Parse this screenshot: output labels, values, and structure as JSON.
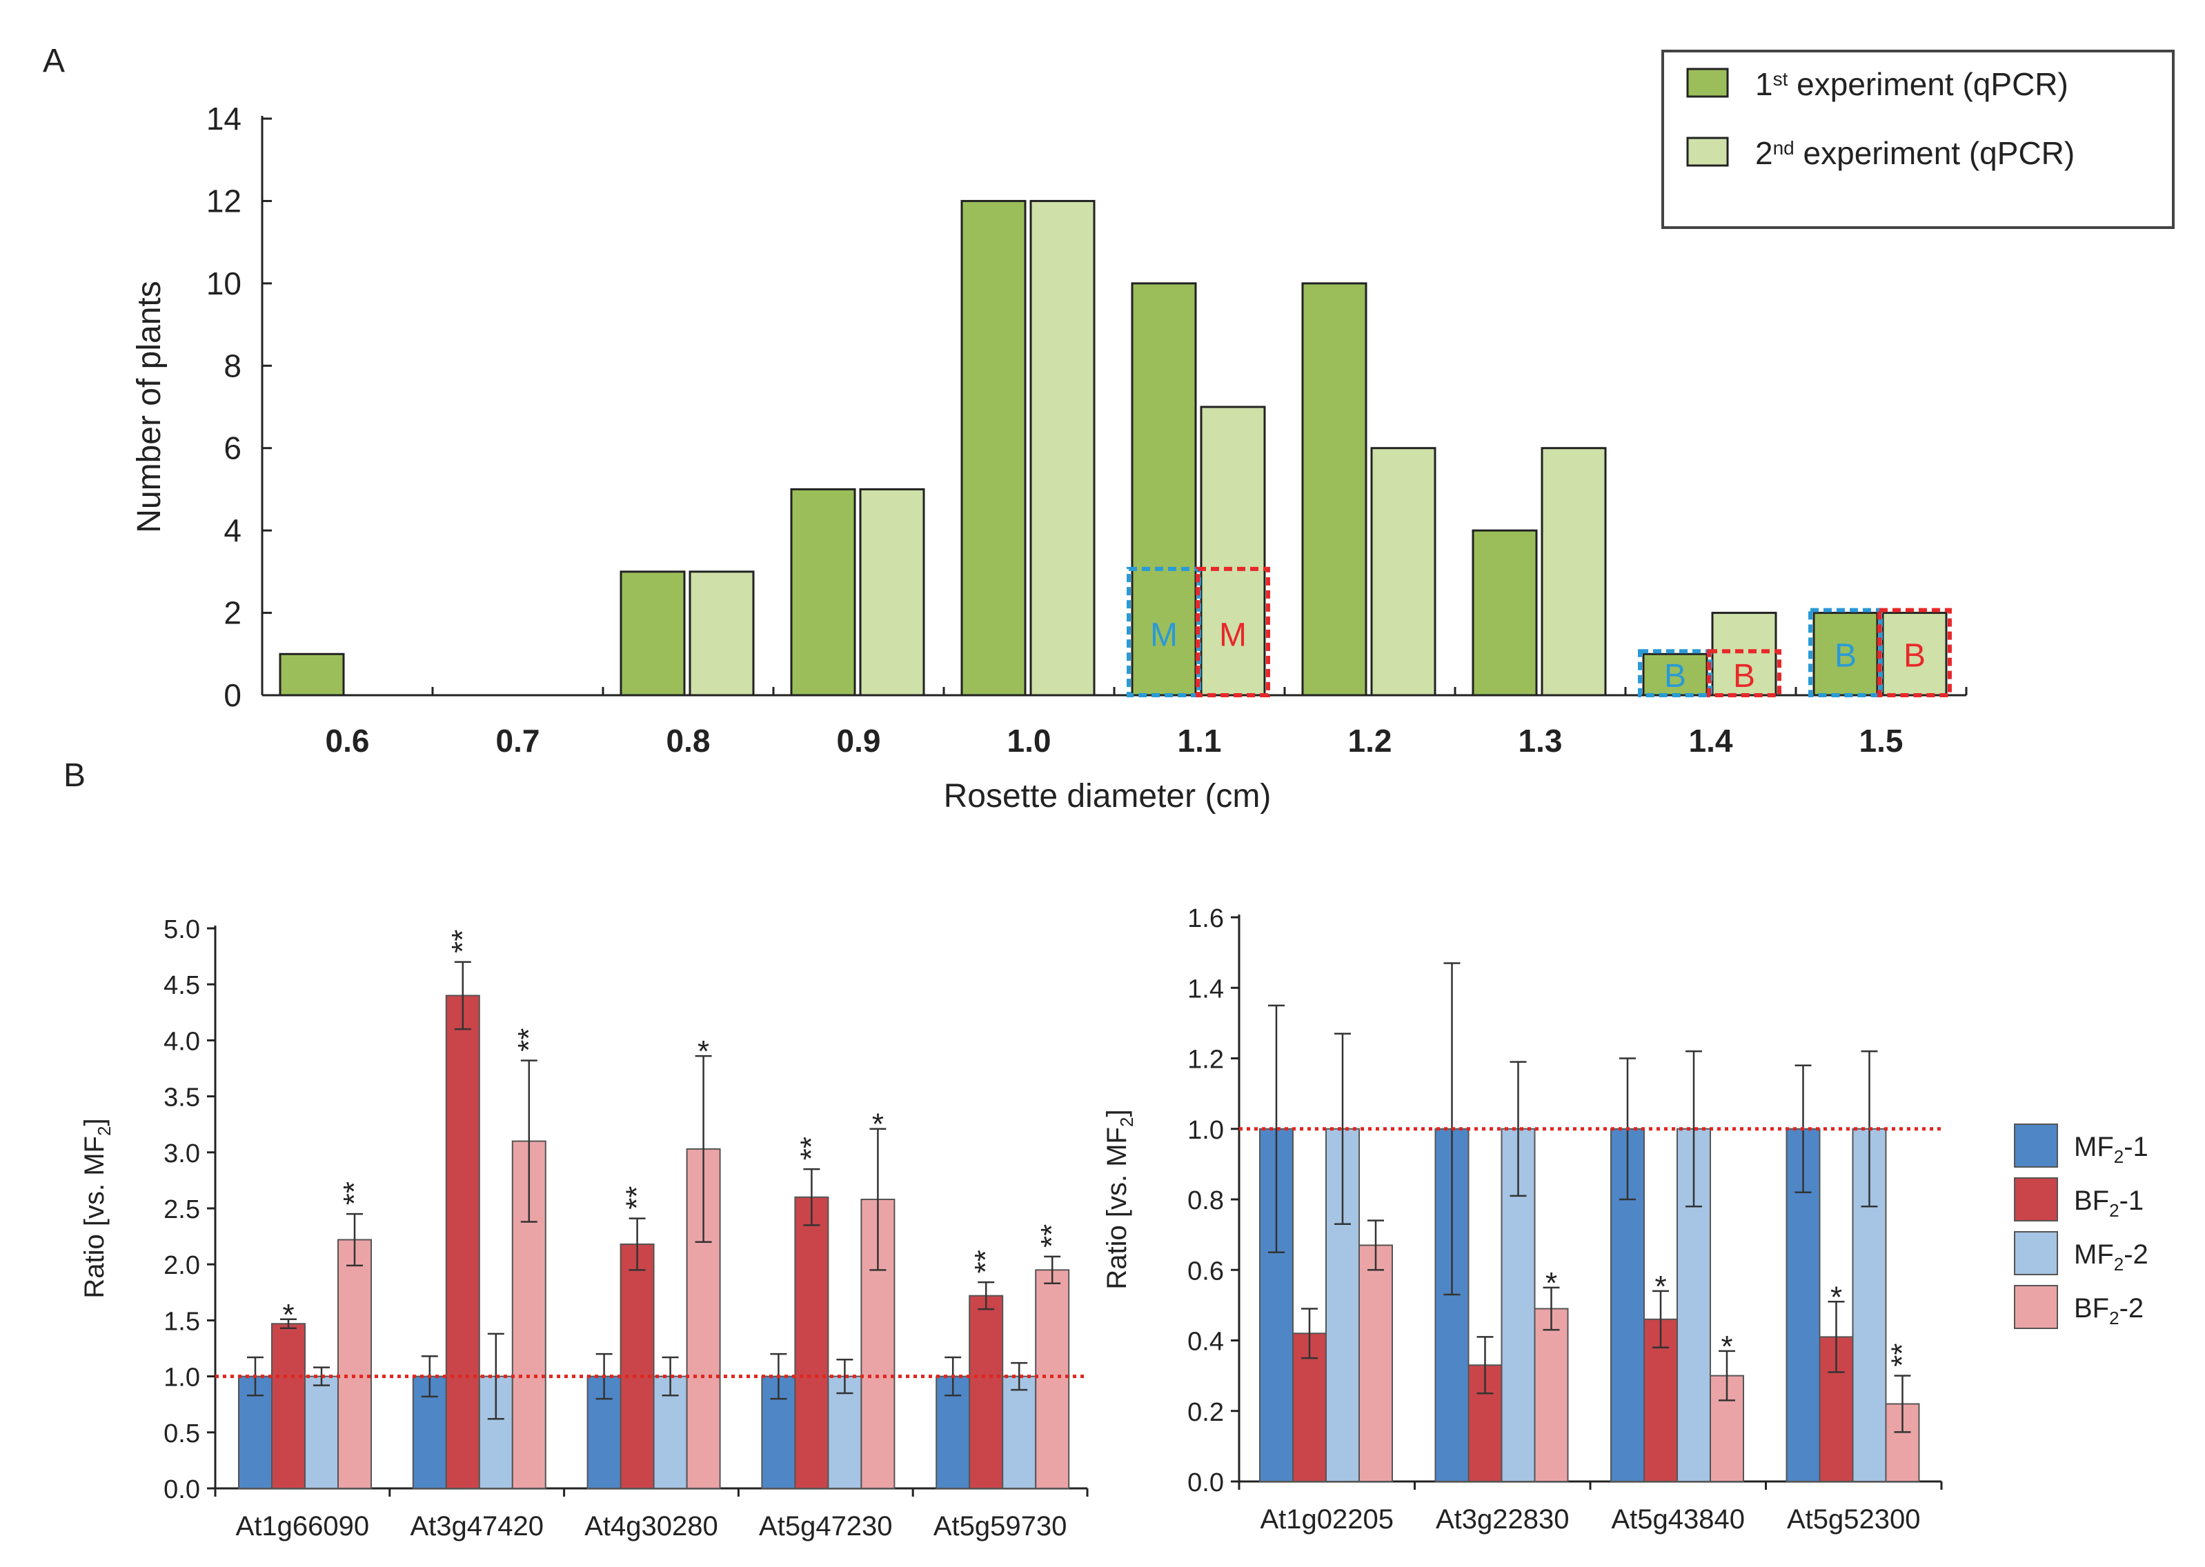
{
  "colors": {
    "green_dark": "#9BBE5A",
    "green_light": "#CFE0A9",
    "mf1": "#4F86C6",
    "bf1": "#C9454A",
    "mf2": "#A6C4E4",
    "bf2": "#EBA4A6",
    "red_line": "#E0261E",
    "blue_box": "#2A9AD6",
    "red_box": "#E8282A",
    "text": "#222222"
  },
  "panel_labels": {
    "a": "A",
    "b": "B"
  },
  "chart_data": [
    {
      "id": "A",
      "type": "bar",
      "title": "",
      "xlabel": "Rosette diameter (cm)",
      "ylabel": "Number of plants",
      "ylim": [
        0,
        14
      ],
      "yticks": [
        0,
        2,
        4,
        6,
        8,
        10,
        12,
        14
      ],
      "categories": [
        "0.6",
        "0.7",
        "0.8",
        "0.9",
        "1.0",
        "1.1",
        "1.2",
        "1.3",
        "1.4",
        "1.5"
      ],
      "series": [
        {
          "name": "1st experiment (qPCR)",
          "legend_pre": "1",
          "legend_sup": "st",
          "legend_post": " experiment (qPCR)",
          "values": [
            1,
            0,
            3,
            5,
            12,
            10,
            10,
            4,
            1,
            2
          ]
        },
        {
          "name": "2nd experiment (qPCR)",
          "legend_pre": "2",
          "legend_sup": "nd",
          "legend_post": " experiment (qPCR)",
          "values": [
            0,
            0,
            3,
            5,
            12,
            7,
            6,
            6,
            2,
            2
          ]
        }
      ],
      "legend_position": "top-right",
      "selections": [
        {
          "category": "1.1",
          "series": 0,
          "label": "M",
          "color": "blue",
          "count": 3
        },
        {
          "category": "1.1",
          "series": 1,
          "label": "M",
          "color": "red",
          "count": 3
        },
        {
          "category": "1.4",
          "series": 0,
          "label": "B",
          "color": "blue",
          "count": 1
        },
        {
          "category": "1.4",
          "series": 1,
          "label": "B",
          "color": "red",
          "count": 1
        },
        {
          "category": "1.5",
          "series": 0,
          "label": "B",
          "color": "blue",
          "count": 2
        },
        {
          "category": "1.5",
          "series": 1,
          "label": "B",
          "color": "red",
          "count": 2
        }
      ]
    },
    {
      "id": "B-left",
      "type": "bar",
      "ylabel_pre": "Ratio [vs. MF",
      "ylabel_sub": "2",
      "ylabel_post": "]",
      "ylim": [
        0,
        5.0
      ],
      "yticks": [
        "0.0",
        "0.5",
        "1.0",
        "1.5",
        "2.0",
        "2.5",
        "3.0",
        "3.5",
        "4.0",
        "4.5",
        "5.0"
      ],
      "reference_line": 1.0,
      "categories": [
        "At1g66090",
        "At3g47420",
        "At4g30280",
        "At5g47230",
        "At5g59730"
      ],
      "series": [
        {
          "name": "MF2-1",
          "values": [
            1.0,
            1.0,
            1.0,
            1.0,
            1.0
          ],
          "errors": [
            0.17,
            0.18,
            0.2,
            0.2,
            0.17
          ],
          "sig": [
            "",
            "",
            "",
            "",
            ""
          ]
        },
        {
          "name": "BF2-1",
          "values": [
            1.47,
            4.4,
            2.18,
            2.6,
            1.72
          ],
          "errors": [
            0.04,
            0.3,
            0.23,
            0.25,
            0.12
          ],
          "sig": [
            "*",
            "**",
            "**",
            "**",
            "**"
          ]
        },
        {
          "name": "MF2-2",
          "values": [
            1.0,
            1.0,
            1.0,
            1.0,
            1.0
          ],
          "errors": [
            0.08,
            0.38,
            0.17,
            0.15,
            0.12
          ],
          "sig": [
            "",
            "",
            "",
            "",
            ""
          ]
        },
        {
          "name": "BF2-2",
          "values": [
            2.22,
            3.1,
            3.03,
            2.58,
            1.95
          ],
          "errors": [
            0.23,
            0.72,
            0.83,
            0.63,
            0.12
          ],
          "sig": [
            "**",
            "**",
            "*",
            "*",
            "**"
          ]
        }
      ]
    },
    {
      "id": "B-right",
      "type": "bar",
      "ylabel_pre": "Ratio [vs. MF",
      "ylabel_sub": "2",
      "ylabel_post": "]",
      "ylim": [
        0,
        1.6
      ],
      "yticks": [
        "0.0",
        "0.2",
        "0.4",
        "0.6",
        "0.8",
        "1.0",
        "1.2",
        "1.4",
        "1.6"
      ],
      "reference_line": 1.0,
      "categories": [
        "At1g02205",
        "At3g22830",
        "At5g43840",
        "At5g52300"
      ],
      "series": [
        {
          "name": "MF2-1",
          "values": [
            1.0,
            1.0,
            1.0,
            1.0
          ],
          "errors": [
            0.35,
            0.47,
            0.2,
            0.18
          ],
          "sig": [
            "",
            "",
            "",
            ""
          ]
        },
        {
          "name": "BF2-1",
          "values": [
            0.42,
            0.33,
            0.46,
            0.41
          ],
          "errors": [
            0.07,
            0.08,
            0.08,
            0.1
          ],
          "sig": [
            "",
            "",
            "*",
            "*"
          ]
        },
        {
          "name": "MF2-2",
          "values": [
            1.0,
            1.0,
            1.0,
            1.0
          ],
          "errors": [
            0.27,
            0.19,
            0.22,
            0.22
          ],
          "sig": [
            "",
            "",
            "",
            ""
          ]
        },
        {
          "name": "BF2-2",
          "values": [
            0.67,
            0.49,
            0.3,
            0.22
          ],
          "errors": [
            0.07,
            0.06,
            0.07,
            0.08
          ],
          "sig": [
            "",
            "*",
            "*",
            "**"
          ]
        }
      ],
      "legend": [
        {
          "pre": "MF",
          "sub": "2",
          "post": "-1"
        },
        {
          "pre": "BF",
          "sub": "2",
          "post": "-1"
        },
        {
          "pre": "MF",
          "sub": "2",
          "post": "-2"
        },
        {
          "pre": "BF",
          "sub": "2",
          "post": "-2"
        }
      ]
    }
  ]
}
